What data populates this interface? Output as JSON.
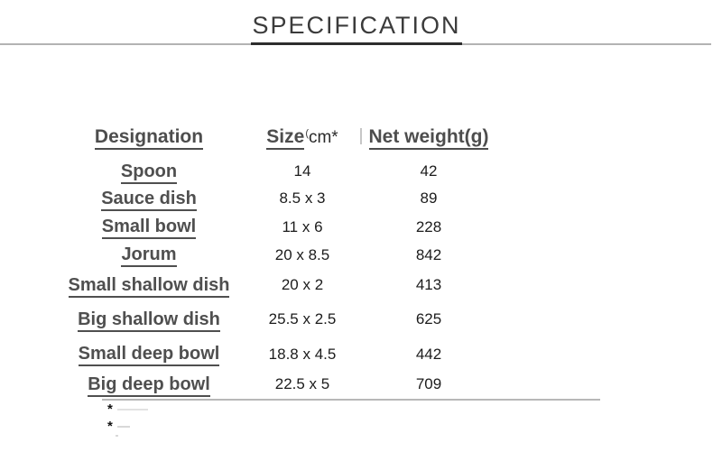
{
  "title": "SPECIFICATION",
  "table": {
    "headers": {
      "designation": "Designation",
      "size": "Size",
      "size_paren": "(",
      "size_unit": "cm*",
      "net_weight": "Net weight(g)"
    },
    "rows": [
      {
        "designation": "Spoon",
        "size": "14",
        "weight": "42"
      },
      {
        "designation": "Sauce dish",
        "size": "8.5 x 3",
        "weight": "89"
      },
      {
        "designation": "Small bowl",
        "size": "11 x 6",
        "weight": "228"
      },
      {
        "designation": "Jorum",
        "size": "20 x 8.5",
        "weight": "842"
      },
      {
        "designation": "Small shallow dish",
        "size": "20 x 2",
        "weight": "413"
      },
      {
        "designation": "Big shallow dish",
        "size": "25.5 x 2.5",
        "weight": "625"
      },
      {
        "designation": "Small deep bowl",
        "size": "18.8 x 4.5",
        "weight": "442"
      },
      {
        "designation": "Big deep bowl",
        "size": "22.5 x 5",
        "weight": "709"
      }
    ]
  },
  "footnotes": [
    "*",
    "*"
  ],
  "colors": {
    "title_text": "#3b3b3b",
    "rule_light": "#b3b3b3",
    "rule_dark": "#2d2d2d",
    "header_text": "#4d4d4d",
    "designation_text": "#4f4f4f",
    "number_text": "#1c1c1c",
    "bottom_rule": "#b8b8b8",
    "background": "#ffffff"
  },
  "chart_data": {
    "type": "table",
    "title": "SPECIFICATION",
    "columns": [
      "Designation",
      "Size(cm*)",
      "Net weight(g)"
    ],
    "rows": [
      [
        "Spoon",
        "14",
        "42"
      ],
      [
        "Sauce dish",
        "8.5 x 3",
        "89"
      ],
      [
        "Small bowl",
        "11 x 6",
        "228"
      ],
      [
        "Jorum",
        "20 x 8.5",
        "842"
      ],
      [
        "Small shallow dish",
        "20 x 2",
        "413"
      ],
      [
        "Big shallow dish",
        "25.5 x 2.5",
        "625"
      ],
      [
        "Small deep bowl",
        "18.8 x 4.5",
        "442"
      ],
      [
        "Big deep bowl",
        "22.5 x 5",
        "709"
      ]
    ]
  }
}
